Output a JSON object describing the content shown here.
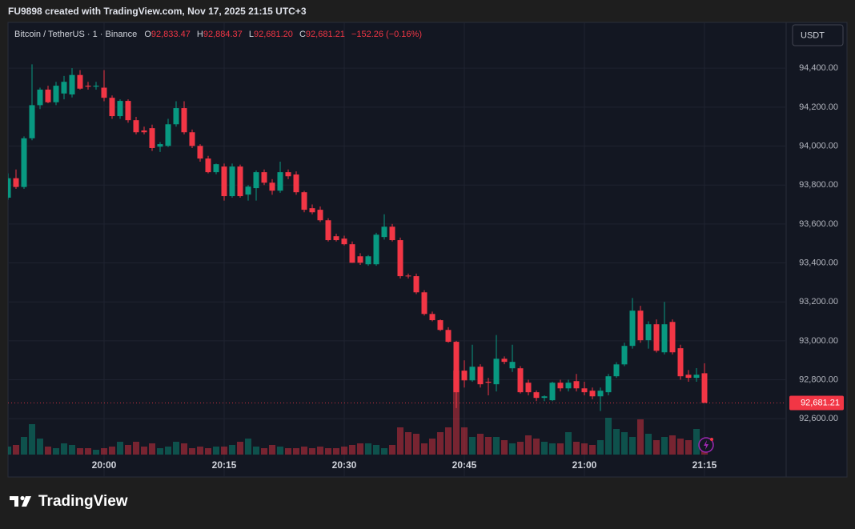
{
  "attribution": "FU9898 created with TradingView.com, Nov 17, 2025 21:15 UTC+3",
  "brand": "TradingView",
  "chart_data": {
    "type": "candlestick",
    "symbol": "Bitcoin / TetherUS · 1 · Binance",
    "ohlc_legend": [
      {
        "key": "O",
        "text": "92,833.47"
      },
      {
        "key": "H",
        "text": "92,884.37"
      },
      {
        "key": "L",
        "text": "92,681.20"
      },
      {
        "key": "C",
        "text": "92,681.21"
      }
    ],
    "change": "−152.26 (−0.16%)",
    "currency": "USDT",
    "last_price_label": "92,681.21",
    "up_color": "#089981",
    "down_color": "#f23645",
    "grid": true,
    "x": [
      "19:48",
      "19:49",
      "19:50",
      "19:51",
      "19:52",
      "19:53",
      "19:54",
      "19:55",
      "19:56",
      "19:57",
      "19:58",
      "19:59",
      "20:00",
      "20:01",
      "20:02",
      "20:03",
      "20:04",
      "20:05",
      "20:06",
      "20:07",
      "20:08",
      "20:09",
      "20:10",
      "20:11",
      "20:12",
      "20:13",
      "20:14",
      "20:15",
      "20:16",
      "20:17",
      "20:18",
      "20:19",
      "20:20",
      "20:21",
      "20:22",
      "20:23",
      "20:24",
      "20:25",
      "20:26",
      "20:27",
      "20:28",
      "20:29",
      "20:30",
      "20:31",
      "20:32",
      "20:33",
      "20:34",
      "20:35",
      "20:36",
      "20:37",
      "20:38",
      "20:39",
      "20:40",
      "20:41",
      "20:42",
      "20:43",
      "20:44",
      "20:45",
      "20:46",
      "20:47",
      "20:48",
      "20:49",
      "20:50",
      "20:51",
      "20:52",
      "20:53",
      "20:54",
      "20:55",
      "20:56",
      "20:57",
      "20:58",
      "20:59",
      "21:00",
      "21:01",
      "21:02",
      "21:03",
      "21:04",
      "21:05",
      "21:06",
      "21:07",
      "21:08",
      "21:09",
      "21:10",
      "21:11",
      "21:12",
      "21:13",
      "21:14",
      "21:15"
    ],
    "xticks": [
      "20:00",
      "20:15",
      "20:30",
      "20:45",
      "21:00",
      "21:15"
    ],
    "ylim": [
      92305,
      94635
    ],
    "yticks": [
      {
        "value": 92600,
        "label": "92,600.00"
      },
      {
        "value": 92800,
        "label": "92,800.00"
      },
      {
        "value": 93000,
        "label": "93,000.00"
      },
      {
        "value": 93200,
        "label": "93,200.00"
      },
      {
        "value": 93400,
        "label": "93,400.00"
      },
      {
        "value": 93600,
        "label": "93,600.00"
      },
      {
        "value": 93800,
        "label": "93,800.00"
      },
      {
        "value": 94000,
        "label": "94,000.00"
      },
      {
        "value": 94200,
        "label": "94,200.00"
      },
      {
        "value": 94400,
        "label": "94,400.00"
      }
    ],
    "series": [
      {
        "name": "BTCUSDT",
        "open": [
          93735,
          93835,
          93790,
          94040,
          94210,
          94290,
          94225,
          94270,
          94265,
          94365,
          94310,
          94305,
          94300,
          94248,
          94154,
          94232,
          94133,
          94080,
          94092,
          93997,
          94001,
          94112,
          94195,
          94071,
          94001,
          93936,
          93866,
          93895,
          93743,
          93895,
          93751,
          93784,
          93866,
          93812,
          93771,
          93866,
          93854,
          93763,
          93681,
          93673,
          93619,
          93537,
          93525,
          93496,
          93434,
          93393,
          93393,
          93533,
          93586,
          93517,
          93335,
          93332,
          93249,
          93138,
          93106,
          93056,
          92995,
          92847,
          92797,
          92867,
          92790,
          92777,
          92908,
          92859,
          92859,
          92785,
          92736,
          92707,
          92695,
          92785,
          92756,
          92793,
          92756,
          92744,
          92715,
          92736,
          92818,
          92879,
          92974,
          93155,
          93003,
          93085,
          92941,
          93097,
          92962,
          92826,
          92810,
          92833.47
        ],
        "high": [
          93860,
          93880,
          94050,
          94420,
          94300,
          94310,
          94330,
          94360,
          94400,
          94390,
          94330,
          94330,
          94390,
          94260,
          94240,
          94240,
          94150,
          94100,
          94110,
          94020,
          94140,
          94230,
          94230,
          94085,
          94010,
          93950,
          93910,
          93910,
          93910,
          93905,
          93800,
          93875,
          93880,
          93830,
          93920,
          93880,
          93870,
          93770,
          93700,
          93690,
          93630,
          93550,
          93540,
          93510,
          93450,
          93440,
          93555,
          93650,
          93600,
          93530,
          93345,
          93345,
          93260,
          93150,
          93110,
          93070,
          93000,
          92900,
          92980,
          92880,
          92810,
          93030,
          92920,
          92980,
          92870,
          92800,
          92745,
          92720,
          92790,
          92800,
          92800,
          92830,
          92790,
          92760,
          92760,
          92830,
          92890,
          92990,
          93220,
          93180,
          93100,
          93110,
          93200,
          93110,
          92980,
          92850,
          92860,
          92884.37
        ],
        "low": [
          93725,
          93780,
          93780,
          94030,
          94190,
          94220,
          94210,
          94240,
          94250,
          94290,
          94290,
          94290,
          94230,
          94140,
          94140,
          94120,
          94060,
          94060,
          93975,
          93970,
          93995,
          94100,
          94060,
          93990,
          93920,
          93860,
          93855,
          93720,
          93735,
          93735,
          93720,
          93720,
          93800,
          93750,
          93760,
          93830,
          93750,
          93660,
          93650,
          93610,
          93510,
          93510,
          93490,
          93400,
          93390,
          93385,
          93385,
          93520,
          93510,
          93320,
          93320,
          93240,
          93130,
          93100,
          93050,
          92990,
          92655,
          92760,
          92790,
          92760,
          92720,
          92740,
          92880,
          92840,
          92730,
          92720,
          92690,
          92690,
          92690,
          92740,
          92740,
          92740,
          92720,
          92700,
          92640,
          92720,
          92810,
          92870,
          92960,
          92990,
          92960,
          92940,
          92930,
          92930,
          92800,
          92790,
          92790,
          92681.2
        ],
        "close": [
          93835,
          93790,
          94040,
          94210,
          94290,
          94225,
          94310,
          94330,
          94365,
          94295,
          94305,
          94310,
          94248,
          94154,
          94232,
          94133,
          94071,
          94071,
          93990,
          94010,
          94112,
          94195,
          94071,
          94001,
          93936,
          93866,
          93907,
          93743,
          93895,
          93743,
          93792,
          93866,
          93812,
          93771,
          93866,
          93845,
          93763,
          93673,
          93660,
          93619,
          93517,
          93517,
          93496,
          93401,
          93401,
          93434,
          93545,
          93586,
          93517,
          93332,
          93332,
          93249,
          93138,
          93106,
          93056,
          92995,
          92736,
          92797,
          92867,
          92777,
          92785,
          92908,
          92892,
          92892,
          92736,
          92736,
          92707,
          92715,
          92785,
          92756,
          92785,
          92756,
          92736,
          92715,
          92744,
          92818,
          92879,
          92974,
          93155,
          93003,
          93085,
          92949,
          93085,
          92941,
          92818,
          92810,
          92826,
          92681.21
        ],
        "volume": [
          10,
          12,
          22,
          38,
          20,
          10,
          8,
          14,
          12,
          8,
          8,
          6,
          8,
          10,
          16,
          12,
          16,
          10,
          14,
          8,
          10,
          16,
          14,
          8,
          10,
          8,
          10,
          10,
          12,
          16,
          20,
          10,
          8,
          12,
          10,
          8,
          8,
          10,
          8,
          10,
          8,
          8,
          10,
          12,
          14,
          14,
          12,
          8,
          12,
          34,
          28,
          26,
          14,
          20,
          28,
          34,
          105,
          34,
          22,
          26,
          22,
          22,
          18,
          14,
          16,
          24,
          20,
          16,
          14,
          14,
          28,
          16,
          14,
          12,
          18,
          46,
          32,
          28,
          22,
          44,
          26,
          18,
          22,
          24,
          20,
          18,
          32,
          8
        ]
      }
    ]
  }
}
